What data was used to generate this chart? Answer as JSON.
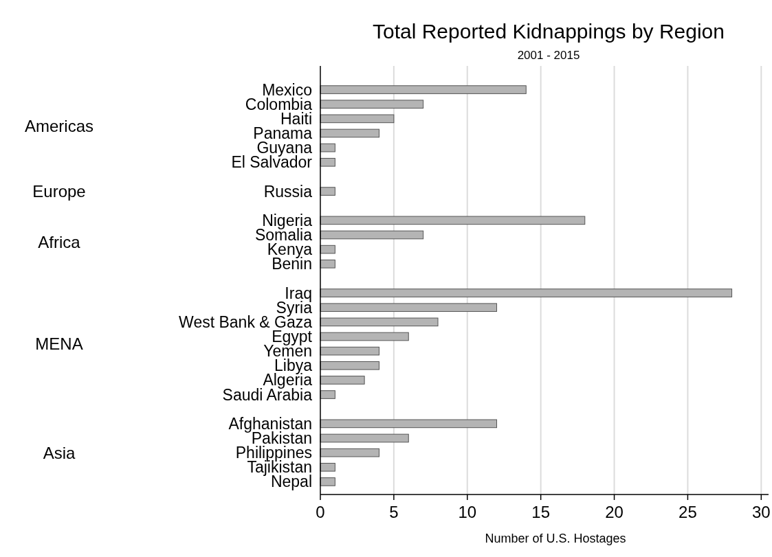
{
  "chart_data": {
    "type": "bar",
    "orientation": "horizontal",
    "title": "Total Reported Kidnappings by Region",
    "subtitle": "2001 - 2015",
    "xlabel": "Number of U.S. Hostages",
    "categories": [
      "Mexico",
      "Colombia",
      "Haiti",
      "Panama",
      "Guyana",
      "El Salvador",
      null,
      "Russia",
      null,
      "Nigeria",
      "Somalia",
      "Kenya",
      "Benin",
      null,
      "Iraq",
      "Syria",
      "West Bank & Gaza",
      "Egypt",
      "Yemen",
      "Libya",
      "Algeria",
      "Saudi Arabia",
      null,
      "Afghanistan",
      "Pakistan",
      "Philippines",
      "Tajikistan",
      "Nepal"
    ],
    "values": [
      14,
      7,
      5,
      4,
      1,
      1,
      null,
      1,
      null,
      18,
      7,
      1,
      1,
      null,
      28,
      12,
      8,
      6,
      4,
      4,
      3,
      1,
      null,
      12,
      6,
      4,
      1,
      1
    ],
    "color": "#b4b4b4",
    "annotations": [
      "Americas",
      "Europe",
      "Africa",
      "MENA",
      "Asia"
    ],
    "xlim": [
      0,
      30.5
    ],
    "xticks": [
      0,
      5,
      10,
      15,
      20,
      25,
      30
    ],
    "grid": "x"
  }
}
